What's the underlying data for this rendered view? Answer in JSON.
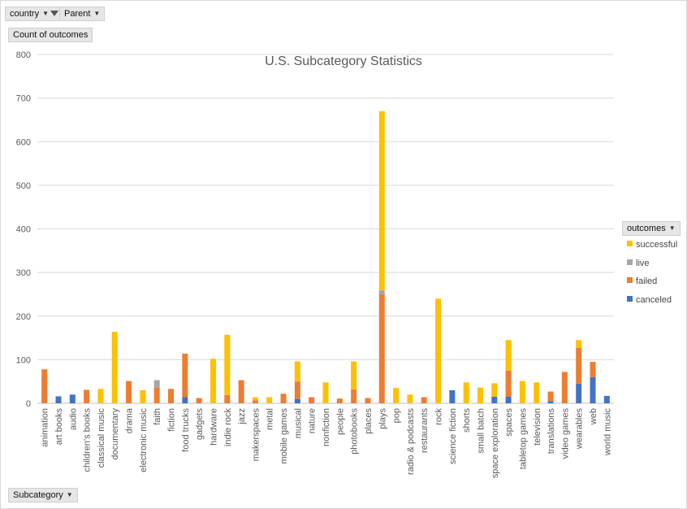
{
  "filters": {
    "country_label": "country",
    "parent_label": "Parent",
    "values_label": "Count of outcomes",
    "axis_field_label": "Subcategory"
  },
  "legend": {
    "title": "outcomes",
    "items": [
      {
        "label": "successful",
        "color": "#ffc000"
      },
      {
        "label": "live",
        "color": "#a5a5a5"
      },
      {
        "label": "failed",
        "color": "#ed7d31"
      },
      {
        "label": "canceled",
        "color": "#4472c4"
      }
    ]
  },
  "chart_data": {
    "type": "bar",
    "stacked": true,
    "title": "U.S. Subcategory Statistics",
    "xlabel": "",
    "ylabel": "",
    "ylim": [
      0,
      800
    ],
    "yticks": [
      0,
      100,
      200,
      300,
      400,
      500,
      600,
      700,
      800
    ],
    "grid": true,
    "legend_position": "right",
    "categories": [
      "animation",
      "art books",
      "audio",
      "children's books",
      "classical music",
      "documentary",
      "drama",
      "electronic music",
      "faith",
      "fiction",
      "food trucks",
      "gadgets",
      "hardware",
      "indie rock",
      "jazz",
      "makerspaces",
      "metal",
      "mobile games",
      "musical",
      "nature",
      "nonfiction",
      "people",
      "photobooks",
      "places",
      "plays",
      "pop",
      "radio & podcasts",
      "restaurants",
      "rock",
      "science fiction",
      "shorts",
      "small batch",
      "space exploration",
      "spaces",
      "tabletop games",
      "television",
      "translations",
      "video games",
      "wearables",
      "web",
      "world music"
    ],
    "series": [
      {
        "name": "canceled",
        "color": "#4472c4",
        "values": [
          0,
          16,
          20,
          0,
          0,
          0,
          0,
          0,
          0,
          0,
          14,
          0,
          0,
          0,
          0,
          0,
          0,
          0,
          10,
          0,
          0,
          0,
          0,
          0,
          0,
          0,
          0,
          0,
          0,
          30,
          0,
          0,
          15,
          15,
          0,
          0,
          5,
          0,
          45,
          60,
          17
        ]
      },
      {
        "name": "failed",
        "color": "#ed7d31",
        "values": [
          78,
          0,
          0,
          31,
          0,
          0,
          51,
          0,
          36,
          33,
          100,
          12,
          0,
          19,
          53,
          7,
          0,
          22,
          40,
          14,
          0,
          11,
          32,
          12,
          250,
          0,
          0,
          14,
          0,
          0,
          0,
          0,
          0,
          60,
          0,
          0,
          22,
          72,
          82,
          35,
          0
        ]
      },
      {
        "name": "live",
        "color": "#a5a5a5",
        "values": [
          0,
          0,
          0,
          0,
          0,
          0,
          0,
          0,
          17,
          0,
          0,
          0,
          0,
          0,
          0,
          0,
          0,
          0,
          0,
          0,
          0,
          0,
          0,
          0,
          9,
          0,
          0,
          0,
          0,
          0,
          0,
          0,
          0,
          0,
          0,
          0,
          0,
          0,
          0,
          0,
          0
        ]
      },
      {
        "name": "successful",
        "color": "#ffc000",
        "values": [
          0,
          0,
          0,
          0,
          33,
          164,
          0,
          30,
          0,
          0,
          0,
          0,
          102,
          138,
          0,
          7,
          14,
          0,
          46,
          0,
          48,
          0,
          64,
          0,
          411,
          35,
          20,
          0,
          240,
          0,
          48,
          36,
          31,
          70,
          51,
          48,
          0,
          0,
          18,
          0,
          0
        ]
      }
    ]
  }
}
